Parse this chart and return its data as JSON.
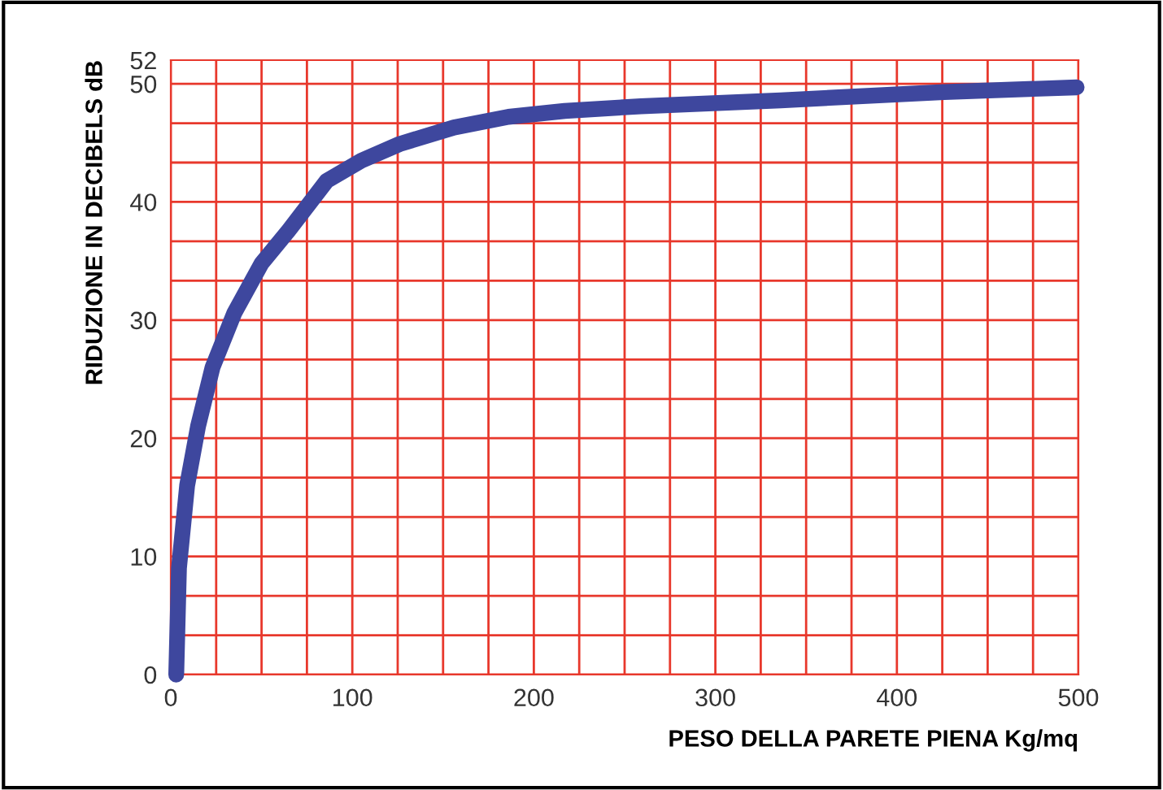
{
  "chart_data": {
    "type": "line",
    "xlabel": "PESO DELLA PARETE PIENA Kg/mq",
    "ylabel": "RIDUZIONE IN DECIBELS dB",
    "xlim": [
      0,
      500
    ],
    "xticks": [
      0,
      100,
      200,
      300,
      400,
      500
    ],
    "ylim": [
      0,
      52
    ],
    "yticks": [
      0,
      10,
      20,
      30,
      40,
      50,
      52
    ],
    "grid": true,
    "marker": "none",
    "line_style": "solid",
    "series": [
      {
        "color": "#3e479e",
        "x": [
          3,
          4.5,
          9,
          15,
          23,
          35,
          50,
          65,
          86,
          105,
          126,
          156,
          186,
          217,
          259,
          336,
          426,
          499
        ],
        "values": [
          0,
          9,
          16,
          21,
          26,
          30.6,
          34.8,
          37.6,
          41.8,
          43.5,
          44.9,
          46.3,
          47.2,
          47.7,
          48.1,
          48.6,
          49.3,
          49.7
        ]
      }
    ]
  }
}
